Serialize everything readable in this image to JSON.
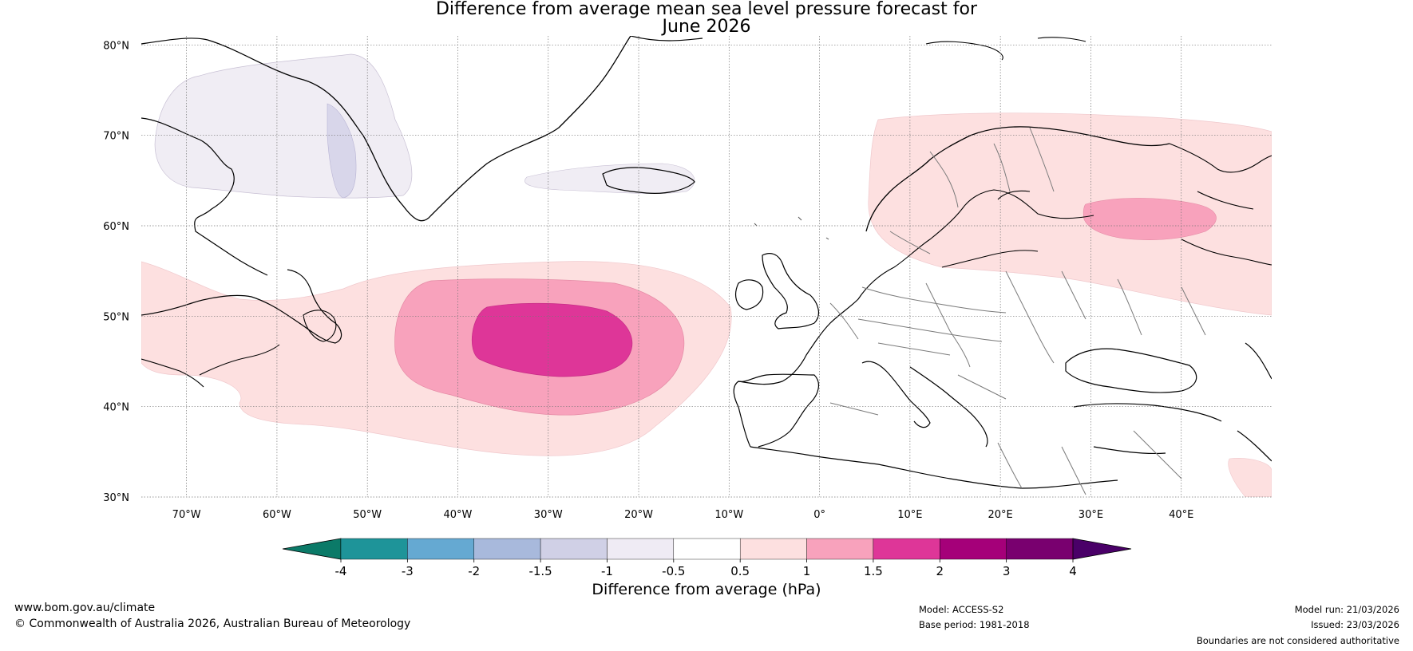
{
  "title": {
    "line1": "Difference from average mean sea level pressure forecast for",
    "line2": "June 2026"
  },
  "map": {
    "lat_labels": [
      "80°N",
      "70°N",
      "60°N",
      "50°N",
      "40°N",
      "30°N"
    ],
    "lon_labels": [
      "70°W",
      "60°W",
      "50°W",
      "40°W",
      "30°W",
      "20°W",
      "10°W",
      "0°",
      "10°E",
      "20°E",
      "30°E",
      "40°E"
    ],
    "lat_range": [
      30,
      81
    ],
    "lon_range": [
      -75,
      50
    ],
    "anomalies": [
      {
        "region": "central North Atlantic",
        "center_lat": 47,
        "center_lon": -29,
        "peak_hpa": "1.5 to 2"
      },
      {
        "region": "north-west Russia",
        "center_lat": 61,
        "center_lon": 35,
        "peak_hpa": "1 to 1.5"
      },
      {
        "region": "Scandinavia / northern Europe",
        "peak_hpa": "0.5 to 1"
      },
      {
        "region": "Greenland",
        "peak_hpa": "-1.5 to -0.5"
      }
    ]
  },
  "colorbar": {
    "ticks": [
      "-4",
      "-3",
      "-2",
      "-1.5",
      "-1",
      "-0.5",
      "0.5",
      "1",
      "1.5",
      "2",
      "3",
      "4"
    ],
    "colors": [
      "#0b7a68",
      "#1e9499",
      "#65a9d2",
      "#a8b9dc",
      "#d0d0e6",
      "#efebf4",
      "#ffffff",
      "#fde0e0",
      "#f8a2bc",
      "#de3698",
      "#a50079",
      "#79006f",
      "#4a0068"
    ],
    "label": "Difference from average (hPa)"
  },
  "footer": {
    "website": "www.bom.gov.au/climate",
    "copyright": "© Commonwealth of Australia 2026, Australian Bureau of Meteorology",
    "model": "Model: ACCESS-S2",
    "base_period": "Base period: 1981-2018",
    "model_run": "Model run: 21/03/2026",
    "issued": "Issued: 23/03/2026",
    "disclaimer": "Boundaries are not considered authoritative"
  }
}
